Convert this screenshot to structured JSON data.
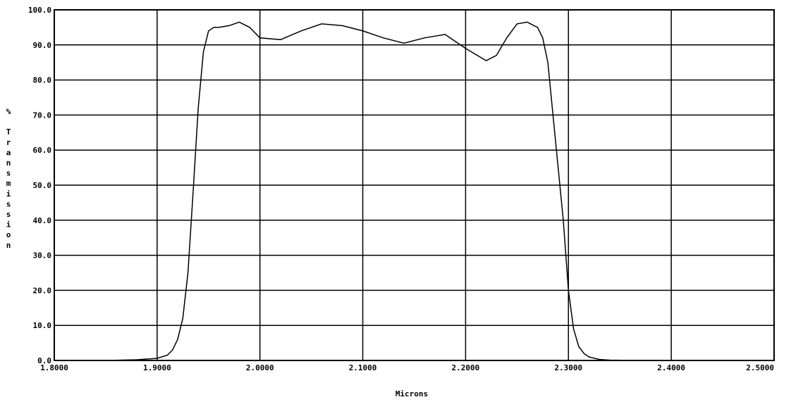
{
  "chart_data": {
    "type": "line",
    "title": "",
    "xlabel": "Microns",
    "ylabel": "% Transmission",
    "xlim": [
      1.8,
      2.5
    ],
    "ylim": [
      0,
      100
    ],
    "grid": true,
    "legend": "none",
    "x_ticks": [
      "1.8000",
      "1.9000",
      "2.0000",
      "2.1000",
      "2.2000",
      "2.3000",
      "2.4000",
      "2.5000"
    ],
    "y_ticks": [
      "0.0",
      "10.0",
      "20.0",
      "30.0",
      "40.0",
      "50.0",
      "60.0",
      "70.0",
      "80.0",
      "90.0",
      "100.0"
    ],
    "line_color": "#000000",
    "series": [
      {
        "x": [
          1.8,
          1.85,
          1.88,
          1.9,
          1.91,
          1.915,
          1.92,
          1.925,
          1.93,
          1.935,
          1.94,
          1.945,
          1.95,
          1.955,
          1.96,
          1.97,
          1.98,
          1.99,
          2.0,
          2.02,
          2.04,
          2.06,
          2.08,
          2.1,
          2.12,
          2.14,
          2.16,
          2.18,
          2.2,
          2.22,
          2.23,
          2.24,
          2.25,
          2.26,
          2.27,
          2.275,
          2.28,
          2.285,
          2.29,
          2.295,
          2.3,
          2.305,
          2.31,
          2.315,
          2.32,
          2.33,
          2.34,
          2.36,
          2.4,
          2.45,
          2.5
        ],
        "y": [
          0,
          0,
          0.2,
          0.6,
          1.5,
          3,
          6,
          12,
          25,
          48,
          72,
          88,
          94,
          95,
          95,
          95.5,
          96.5,
          95,
          92,
          91.5,
          94,
          96,
          95.5,
          94,
          92,
          90.5,
          92,
          93,
          89,
          85.5,
          87,
          92,
          96,
          96.5,
          95,
          92,
          85,
          70,
          55,
          40,
          20,
          9,
          4,
          2,
          1,
          0.3,
          0.1,
          0,
          0,
          0,
          0
        ]
      }
    ]
  }
}
